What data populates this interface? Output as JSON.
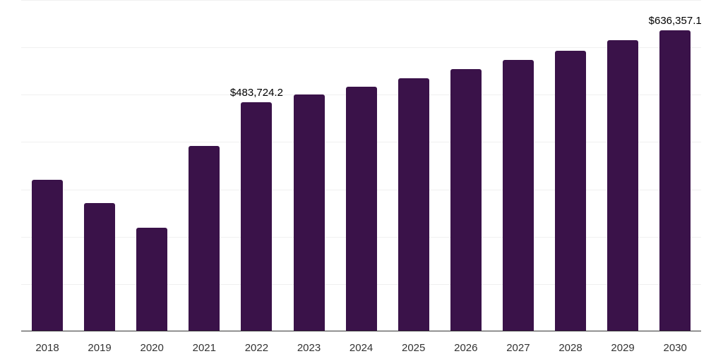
{
  "chart_data": {
    "type": "bar",
    "title": "",
    "xlabel": "",
    "ylabel": "",
    "categories": [
      "2018",
      "2019",
      "2020",
      "2021",
      "2022",
      "2023",
      "2024",
      "2025",
      "2026",
      "2027",
      "2028",
      "2029",
      "2030"
    ],
    "values": [
      320700,
      271500,
      219300,
      392300,
      483724.2,
      499700,
      516100,
      534000,
      553400,
      572800,
      592200,
      614500,
      636357.1
    ],
    "data_labels": [
      {
        "category": "2022",
        "text": "$483,724.2"
      },
      {
        "category": "2030",
        "text": "$636,357.1"
      }
    ],
    "ylim": [
      0,
      700000
    ],
    "grid": true,
    "grid_step": 100000,
    "legend": null,
    "bar_color": "#3a1249",
    "axis_color": "#333333",
    "grid_color": "#f0f0f0"
  }
}
